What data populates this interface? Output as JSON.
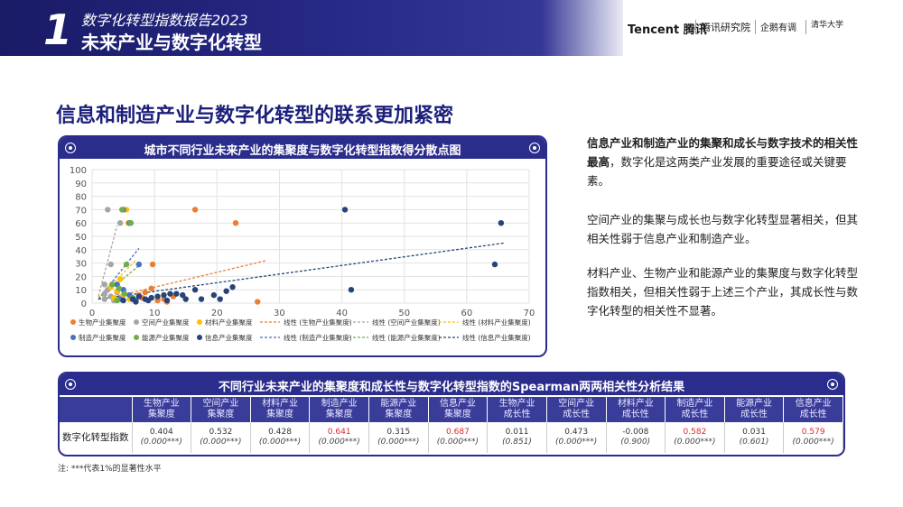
{
  "header": {
    "chapter_number": "1",
    "report_title": "数字化转型指数报告2023",
    "chapter_title": "未来产业与数字化转型",
    "logos": {
      "tencent": "Tencent 腾讯",
      "research": "腾讯研究院",
      "penguin": "企鹅有调",
      "tsinghua": "清华大学"
    }
  },
  "page_title": "信息和制造产业与数字化转型的联系更加紧密",
  "chart_panel": {
    "title": "城市不同行业未来产业的集聚度与数字化转型指数得分散点图"
  },
  "chart_data": {
    "type": "scatter",
    "title": "城市不同行业未来产业的集聚度与数字化转型指数得分散点图",
    "xlim": [
      0,
      70
    ],
    "ylim": [
      0,
      100
    ],
    "x_ticks": [
      "0",
      "10",
      "20",
      "30",
      "40",
      "50",
      "60",
      "70"
    ],
    "y_ticks": [
      "0",
      "10",
      "20",
      "30",
      "40",
      "50",
      "60",
      "70",
      "80",
      "90",
      "100"
    ],
    "grid": true,
    "legend_placement": "bottom",
    "series": [
      {
        "name": "生物产业集聚度",
        "color": "#ed7d31",
        "points": [
          [
            16.5,
            70
          ],
          [
            23,
            60
          ],
          [
            9.7,
            29
          ],
          [
            26.5,
            1
          ],
          [
            10.5,
            2
          ],
          [
            9.5,
            11
          ],
          [
            12,
            1
          ],
          [
            13,
            5
          ],
          [
            8.5,
            8
          ],
          [
            8,
            4
          ],
          [
            11.5,
            3
          ],
          [
            7.5,
            6
          ],
          [
            6.5,
            3
          ]
        ]
      },
      {
        "name": "空间产业集聚度",
        "color": "#a5a5a5",
        "points": [
          [
            2.5,
            70
          ],
          [
            4.5,
            60
          ],
          [
            3,
            29
          ],
          [
            2,
            14
          ],
          [
            2.5,
            10
          ],
          [
            2,
            7
          ],
          [
            3,
            5
          ],
          [
            2,
            3
          ],
          [
            3.5,
            2
          ],
          [
            4,
            8
          ]
        ]
      },
      {
        "name": "材料产业集聚度",
        "color": "#ffc000",
        "points": [
          [
            5.5,
            70
          ],
          [
            5.8,
            60
          ],
          [
            4.5,
            18
          ],
          [
            3,
            12
          ],
          [
            4,
            9
          ],
          [
            5,
            6
          ],
          [
            3.5,
            4
          ],
          [
            6,
            3
          ]
        ]
      },
      {
        "name": "制造产业集聚度",
        "color": "#4472c4",
        "points": [
          [
            5,
            70
          ],
          [
            6,
            60
          ],
          [
            7.5,
            29
          ],
          [
            4,
            14
          ],
          [
            5,
            10
          ],
          [
            6,
            6
          ],
          [
            4.5,
            3
          ],
          [
            7,
            2
          ]
        ]
      },
      {
        "name": "能源产业集聚度",
        "color": "#70ad47",
        "points": [
          [
            4.8,
            70
          ],
          [
            6.2,
            60
          ],
          [
            5.5,
            29
          ],
          [
            3.2,
            14
          ],
          [
            4.3,
            11
          ],
          [
            5.2,
            7
          ],
          [
            6.5,
            4
          ],
          [
            4,
            2
          ]
        ]
      },
      {
        "name": "信息产业集聚度",
        "color": "#264478",
        "points": [
          [
            40.5,
            70
          ],
          [
            65.5,
            60
          ],
          [
            64.5,
            29
          ],
          [
            41.5,
            10
          ],
          [
            22.5,
            12
          ],
          [
            21.5,
            9
          ],
          [
            19.5,
            6
          ],
          [
            16.5,
            10
          ],
          [
            14.5,
            6
          ],
          [
            13.5,
            7
          ],
          [
            11.5,
            6
          ],
          [
            12.5,
            7
          ],
          [
            10.5,
            5
          ],
          [
            9.5,
            4
          ],
          [
            8.5,
            3
          ],
          [
            7.5,
            5
          ],
          [
            6.5,
            3
          ],
          [
            17.5,
            3
          ],
          [
            20.5,
            3
          ],
          [
            15,
            3
          ],
          [
            12,
            2
          ],
          [
            9,
            2
          ],
          [
            7,
            1
          ],
          [
            5,
            2
          ]
        ]
      }
    ],
    "trendlines": [
      {
        "name": "线性 (生物产业集聚度)",
        "color": "#ed7d31",
        "from": [
          2,
          3
        ],
        "to": [
          28,
          32
        ]
      },
      {
        "name": "线性 (空间产业集聚度)",
        "color": "#a5a5a5",
        "from": [
          1,
          5
        ],
        "to": [
          4,
          58
        ]
      },
      {
        "name": "线性 (材料产业集聚度)",
        "color": "#ffc000",
        "from": [
          1,
          4
        ],
        "to": [
          7,
          32
        ]
      },
      {
        "name": "线性 (制造产业集聚度)",
        "color": "#4472c4",
        "from": [
          1,
          3
        ],
        "to": [
          7.5,
          41
        ]
      },
      {
        "name": "线性 (能源产业集聚度)",
        "color": "#70ad47",
        "from": [
          1,
          3
        ],
        "to": [
          7.5,
          28
        ]
      },
      {
        "name": "线性 (信息产业集聚度)",
        "color": "#264478",
        "from": [
          1,
          3
        ],
        "to": [
          66,
          45
        ]
      }
    ]
  },
  "right_text": {
    "p1_bold": "信息产业和制造产业的集聚和成长与数字技术的相关性最高",
    "p1_rest": "，数字化是这两类产业发展的重要途径或关键要素。",
    "p2": "空间产业的集聚与成长也与数字化转型显著相关，但其相关性弱于信息产业和制造产业。",
    "p3": "材料产业、生物产业和能源产业的集聚度与数字化转型指数相关，但相关性弱于上述三个产业，其成长性与数字化转型的相关性不显著。"
  },
  "table": {
    "title": "不同行业未来产业的集聚度和成长性与数字化转型指数的Spearman两两相关性分析结果",
    "row_label": "数字化转型指数",
    "columns": [
      {
        "top": "生物产业",
        "bottom": "集聚度",
        "value": "0.404",
        "p": "(0.000***)",
        "highlight": false
      },
      {
        "top": "空间产业",
        "bottom": "集聚度",
        "value": "0.532",
        "p": "(0.000***)",
        "highlight": false
      },
      {
        "top": "材料产业",
        "bottom": "集聚度",
        "value": "0.428",
        "p": "(0.000***)",
        "highlight": false
      },
      {
        "top": "制造产业",
        "bottom": "集聚度",
        "value": "0.641",
        "p": "(0.000***)",
        "highlight": true
      },
      {
        "top": "能源产业",
        "bottom": "集聚度",
        "value": "0.315",
        "p": "(0.000***)",
        "highlight": false
      },
      {
        "top": "信息产业",
        "bottom": "集聚度",
        "value": "0.687",
        "p": "(0.000***)",
        "highlight": true
      },
      {
        "top": "生物产业",
        "bottom": "成长性",
        "value": "0.011",
        "p": "(0.851)",
        "highlight": false
      },
      {
        "top": "空间产业",
        "bottom": "成长性",
        "value": "0.473",
        "p": "(0.000***)",
        "highlight": false
      },
      {
        "top": "材料产业",
        "bottom": "成长性",
        "value": "-0.008",
        "p": "(0.900)",
        "highlight": false
      },
      {
        "top": "制造产业",
        "bottom": "成长性",
        "value": "0.582",
        "p": "(0.000***)",
        "highlight": true
      },
      {
        "top": "能源产业",
        "bottom": "成长性",
        "value": "0.031",
        "p": "(0.601)",
        "highlight": false
      },
      {
        "top": "信息产业",
        "bottom": "成长性",
        "value": "0.579",
        "p": "(0.000***)",
        "highlight": true
      }
    ]
  },
  "note": "注:  ***代表1%的显著性水平"
}
